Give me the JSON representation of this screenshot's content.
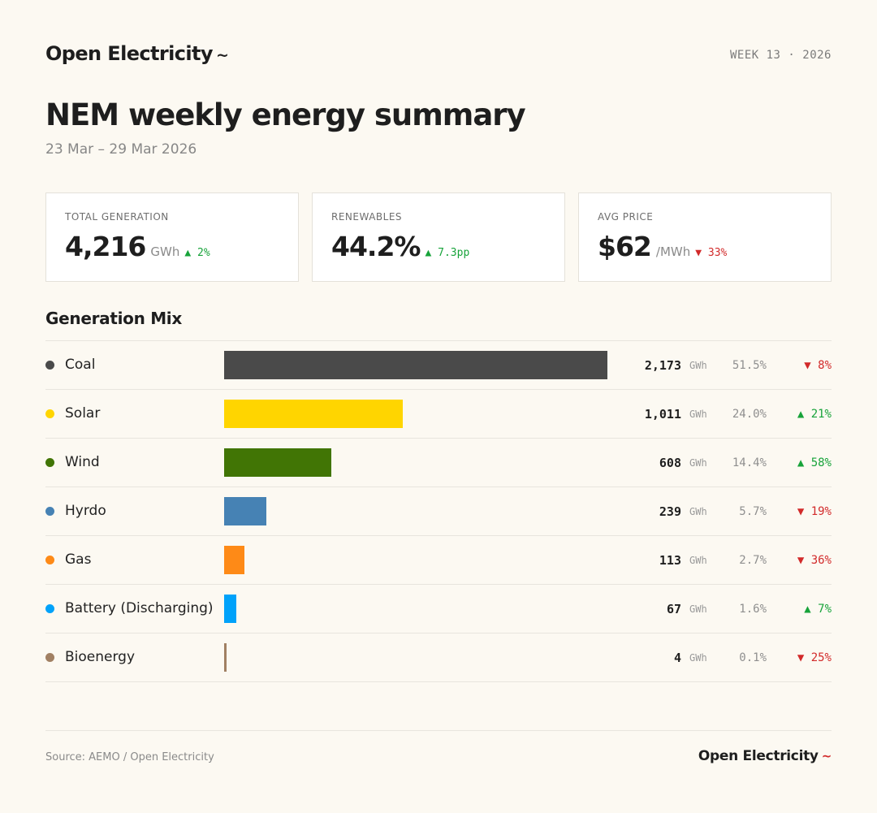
{
  "brand": {
    "name": "Open Electricity",
    "mark": "~"
  },
  "week_label": "WEEK 13 · 2026",
  "title": "NEM weekly energy summary",
  "date_range": "23 Mar – 29 Mar 2026",
  "colors": {
    "up": "#17a33a",
    "down": "#d22a2a"
  },
  "cards": [
    {
      "label": "TOTAL GENERATION",
      "value": "4,216",
      "unit": "GWh",
      "delta": "▲ 2%",
      "direction": "up"
    },
    {
      "label": "RENEWABLES",
      "value": "44.2%",
      "unit": "",
      "delta": "▲ 7.3pp",
      "direction": "up"
    },
    {
      "label": "AVG PRICE",
      "value": "$62",
      "unit": "/MWh",
      "delta": "▼ 33%",
      "direction": "down"
    }
  ],
  "chart_data": {
    "type": "bar",
    "title": "Generation Mix",
    "unit": "GWh",
    "orientation": "horizontal",
    "categories": [
      "Coal",
      "Solar",
      "Wind",
      "Hyrdo",
      "Gas",
      "Battery (Discharging)",
      "Bioenergy"
    ],
    "values": [
      2173,
      1011,
      608,
      239,
      113,
      67,
      4
    ],
    "value_labels": [
      "2,173",
      "1,011",
      "608",
      "239",
      "113",
      "67",
      "4"
    ],
    "shares": [
      "51.5%",
      "24.0%",
      "14.4%",
      "5.7%",
      "2.7%",
      "1.6%",
      "0.1%"
    ],
    "changes": [
      "▼ 8%",
      "▲ 21%",
      "▲ 58%",
      "▼ 19%",
      "▼ 36%",
      "▲ 7%",
      "▼ 25%"
    ],
    "change_directions": [
      "down",
      "up",
      "up",
      "down",
      "down",
      "up",
      "down"
    ],
    "colors": [
      "#4a4a4a",
      "#ffd500",
      "#417505",
      "#4682b4",
      "#fe8a17",
      "#00a2fa",
      "#a18063"
    ],
    "xlim": [
      0,
      2173
    ]
  },
  "footer": {
    "source": "Source: AEMO / Open Electricity",
    "brand": "Open Electricity",
    "mark": "~"
  }
}
